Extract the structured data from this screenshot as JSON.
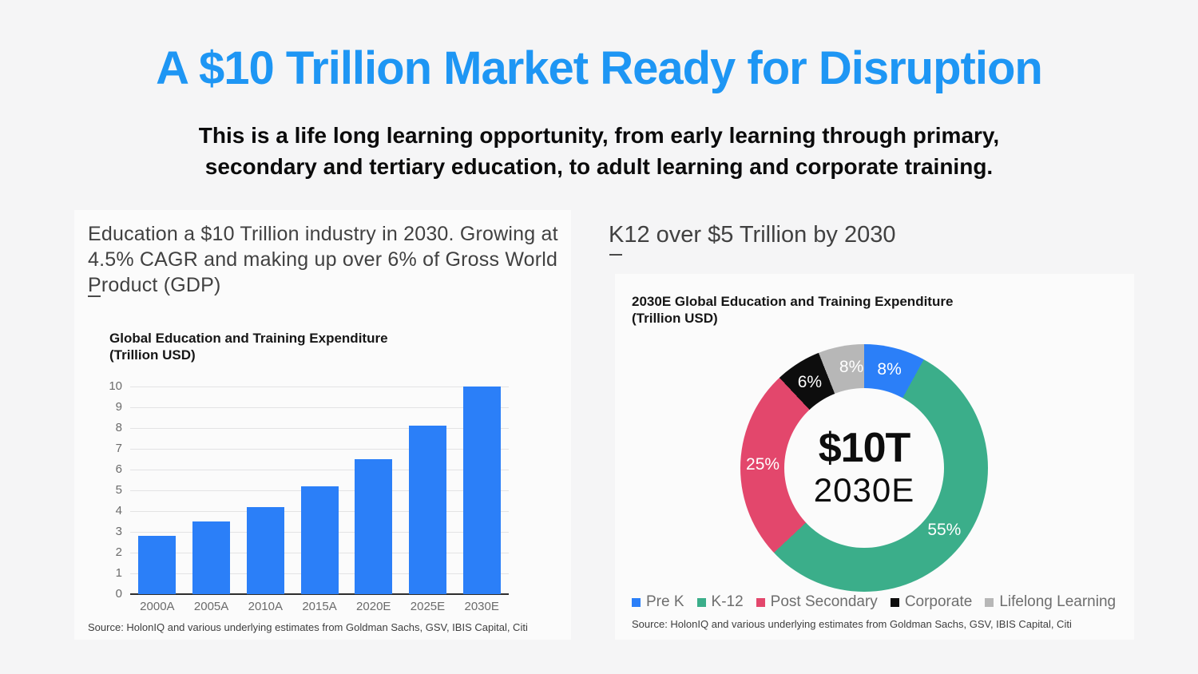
{
  "page": {
    "title": "A $10 Trillion Market Ready for Disruption",
    "title_color": "#1E96F4",
    "background_color": "#F5F5F6",
    "subtitle_line1": "This is a life long learning opportunity, from early learning through primary,",
    "subtitle_line2": "secondary and tertiary education, to adult learning and corporate training."
  },
  "left_panel": {
    "heading": "Education a $10 Trillion industry in 2030. Growing at 4.5% CAGR and making up over 6% of Gross World Product (GDP)",
    "chart_title_line1": "Global Education and Training Expenditure",
    "chart_title_line2": "(Trillion USD)",
    "source": "Source: HolonIQ and various underlying estimates from Goldman Sachs, GSV, IBIS Capital, Citi"
  },
  "right_panel": {
    "heading": "K12 over $5 Trillion by 2030",
    "chart_title_line1": "2030E Global Education and Training Expenditure",
    "chart_title_line2": "(Trillion USD)",
    "center_value": "$10T",
    "center_year": "2030E",
    "source": "Source: HolonIQ and various underlying estimates from Goldman Sachs, GSV, IBIS Capital, Citi"
  },
  "chart_data": [
    {
      "type": "bar",
      "title": "Global Education and Training Expenditure (Trillion USD)",
      "categories": [
        "2000A",
        "2005A",
        "2010A",
        "2015A",
        "2020E",
        "2025E",
        "2030E"
      ],
      "values": [
        2.8,
        3.5,
        4.2,
        5.2,
        6.5,
        8.1,
        10.0
      ],
      "xlabel": "",
      "ylabel": "Trillion USD",
      "ylim": [
        0,
        10
      ],
      "ytick_step": 1,
      "grid": true,
      "bar_color": "#2B7FF8"
    },
    {
      "type": "pie",
      "donut": true,
      "title": "2030E Global Education and Training Expenditure (Trillion USD)",
      "center_label": "$10T 2030E",
      "legend_position": "bottom",
      "slices": [
        {
          "label": "Pre K",
          "value": 8,
          "color": "#2B7FF8"
        },
        {
          "label": "K-12",
          "value": 55,
          "color": "#3BAE8A"
        },
        {
          "label": "Post Secondary",
          "value": 25,
          "color": "#E3476C"
        },
        {
          "label": "Corporate",
          "value": 6,
          "color": "#0D0D0D"
        },
        {
          "label": "Lifelong Learning",
          "value": 8,
          "color": "#B7B7B7"
        }
      ]
    }
  ]
}
